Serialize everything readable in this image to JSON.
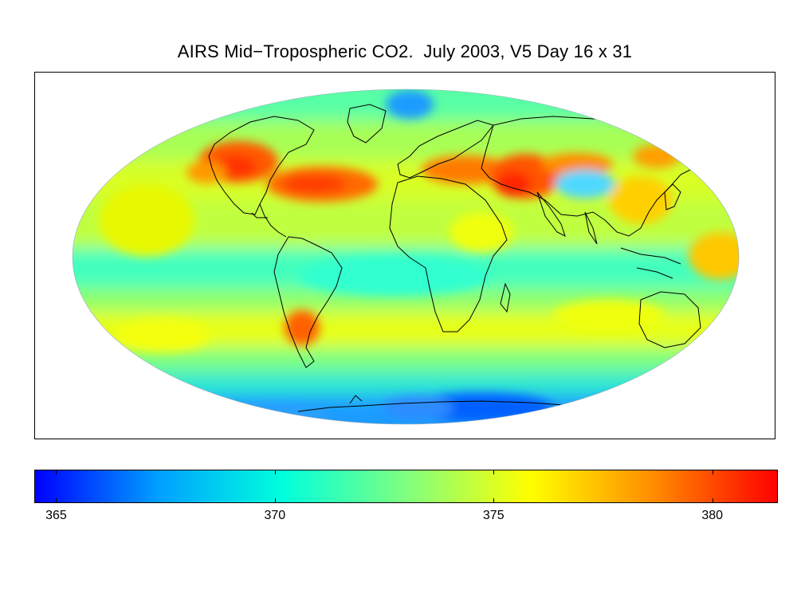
{
  "title": "AIRS Mid−Tropospheric CO2.  July 2003, V5 Day 16 x 31",
  "colorbar": {
    "min": 364.5,
    "max": 381.5,
    "ticks": [
      "365",
      "370",
      "375",
      "380"
    ],
    "tick_values": [
      365,
      370,
      375,
      380
    ],
    "colors": [
      "#0000ff",
      "#00a0ff",
      "#00ffdd",
      "#7fff7f",
      "#ffff00",
      "#ff8c00",
      "#ff0000"
    ]
  },
  "chart_data": {
    "type": "heatmap",
    "title": "AIRS Mid−Tropospheric CO2.  July 2003, V5 Day 16 x 31",
    "projection": "Mollweide",
    "colorbar_range": [
      364.5,
      381.5
    ],
    "colorbar_ticks": [
      365,
      370,
      375,
      380
    ],
    "colormap": "jet",
    "features": [
      {
        "region": "Eastern United States",
        "value": 380
      },
      {
        "region": "North Atlantic",
        "value": 381
      },
      {
        "region": "Mediterranean / Middle East",
        "value": 380
      },
      {
        "region": "Central Asia",
        "value": 381
      },
      {
        "region": "Southern South America",
        "value": 379
      },
      {
        "region": "Equatorial belt",
        "value": 373
      },
      {
        "region": "Antarctica",
        "value": 368
      },
      {
        "region": "Arctic",
        "value": 372
      },
      {
        "region": "Mid-latitude background",
        "value": 377
      }
    ]
  }
}
